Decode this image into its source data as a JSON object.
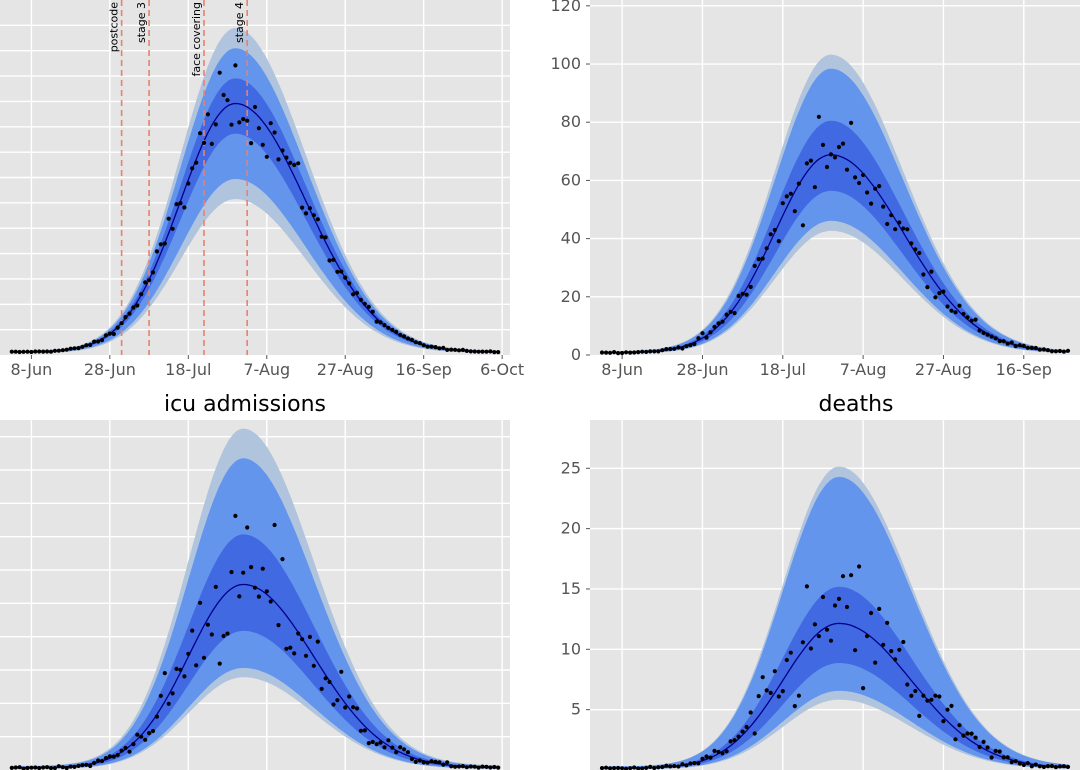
{
  "colors": {
    "band_outer": "#b0c4de",
    "band_90": "#6495ed",
    "band_50": "#4169e1",
    "median": "#00008b",
    "points": "#000000",
    "intervention": "#e9806e"
  },
  "chart_data": [
    {
      "type": "line",
      "title": "",
      "xlabel": "",
      "ylabel": "",
      "x_ticks": [
        "8-Jun",
        "28-Jun",
        "18-Jul",
        "7-Aug",
        "27-Aug",
        "16-Sep",
        "6-Oct"
      ],
      "x_range": [
        "2020-05-31",
        "2020-10-08"
      ],
      "y_ticks": [],
      "y_range": [
        0,
        700
      ],
      "grid": true,
      "peak": {
        "date": "2020-07-30",
        "value": 490
      },
      "interventions": [
        {
          "label": "postcode",
          "date": "2020-07-01"
        },
        {
          "label": "stage 3",
          "date": "2020-07-08"
        },
        {
          "label": "face covering",
          "date": "2020-07-22"
        },
        {
          "label": "stage 4",
          "date": "2020-08-02"
        }
      ]
    },
    {
      "type": "line",
      "title": "",
      "xlabel": "",
      "ylabel": "",
      "x_ticks": [
        "8-Jun",
        "28-Jun",
        "18-Jul",
        "7-Aug",
        "27-Aug",
        "16-Sep"
      ],
      "x_range": [
        "2020-05-31",
        "2020-09-30"
      ],
      "y_ticks": [
        "0",
        "20",
        "40",
        "60",
        "80",
        "100",
        "120"
      ],
      "y_range": [
        0,
        122
      ],
      "grid": true,
      "peak": {
        "date": "2020-07-30",
        "value": 68
      }
    },
    {
      "type": "line",
      "title": "icu admissions",
      "xlabel": "",
      "ylabel": "",
      "x_ticks": [],
      "x_range": [
        "2020-05-31",
        "2020-10-08"
      ],
      "y_ticks": [],
      "y_range": [
        0,
        42
      ],
      "grid": true,
      "peak": {
        "date": "2020-08-01",
        "value": 22
      }
    },
    {
      "type": "line",
      "title": "deaths",
      "xlabel": "",
      "ylabel": "",
      "x_ticks": [],
      "x_range": [
        "2020-05-31",
        "2020-09-30"
      ],
      "y_ticks": [
        "5",
        "10",
        "15",
        "20",
        "25"
      ],
      "y_range": [
        0,
        29
      ],
      "grid": true,
      "peak": {
        "date": "2020-08-01",
        "value": 12
      }
    }
  ]
}
